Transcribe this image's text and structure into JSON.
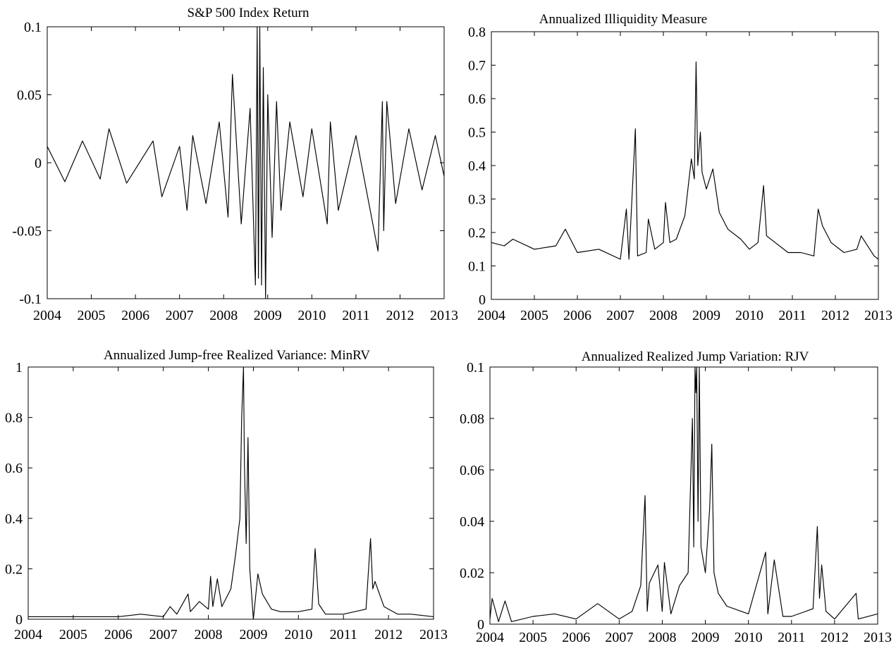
{
  "chart_data": [
    {
      "type": "line",
      "title": "S&P 500 Index Return",
      "xlim": [
        2004,
        2013
      ],
      "ylim": [
        -0.1,
        0.1
      ],
      "xticks": [
        2004,
        2005,
        2006,
        2007,
        2008,
        2009,
        2010,
        2011,
        2012,
        2013
      ],
      "xtick_labels": [
        "2004",
        "2005",
        "2006",
        "2007",
        "2008",
        "2009",
        "2010",
        "2011",
        "2012",
        "2013"
      ],
      "yticks": [
        -0.1,
        -0.05,
        0,
        0.05,
        0.1
      ],
      "ytick_labels": [
        "-0.1",
        "-0.05",
        "0",
        "0.05",
        "0.1"
      ],
      "grid": false,
      "series": [
        {
          "x": [
            2004.0,
            2004.4,
            2004.8,
            2005.2,
            2005.4,
            2005.8,
            2006.4,
            2006.6,
            2007.0,
            2007.17,
            2007.3,
            2007.6,
            2007.9,
            2008.1,
            2008.2,
            2008.4,
            2008.6,
            2008.72,
            2008.76,
            2008.79,
            2008.82,
            2008.86,
            2008.9,
            2008.95,
            2009.0,
            2009.1,
            2009.2,
            2009.3,
            2009.5,
            2009.8,
            2010.0,
            2010.35,
            2010.42,
            2010.6,
            2011.0,
            2011.5,
            2011.6,
            2011.63,
            2011.7,
            2011.9,
            2012.2,
            2012.5,
            2012.8,
            2013.0
          ],
          "y": [
            0.012,
            -0.014,
            0.016,
            -0.012,
            0.025,
            -0.015,
            0.016,
            -0.025,
            0.012,
            -0.035,
            0.02,
            -0.03,
            0.03,
            -0.04,
            0.065,
            -0.045,
            0.04,
            -0.09,
            0.1,
            -0.085,
            0.1,
            -0.09,
            0.07,
            -0.1,
            0.05,
            -0.055,
            0.045,
            -0.035,
            0.03,
            -0.025,
            0.025,
            -0.045,
            0.03,
            -0.035,
            0.02,
            -0.065,
            0.045,
            -0.05,
            0.045,
            -0.03,
            0.025,
            -0.02,
            0.02,
            -0.01
          ]
        }
      ]
    },
    {
      "type": "line",
      "title": "Annualized Illiquidity Measure",
      "xlim": [
        2004,
        2013
      ],
      "ylim": [
        0,
        0.8
      ],
      "xticks": [
        2004,
        2005,
        2006,
        2007,
        2008,
        2009,
        2010,
        2011,
        2012,
        2013
      ],
      "xtick_labels": [
        "2004",
        "2005",
        "2006",
        "2007",
        "2008",
        "2009",
        "2010",
        "2011",
        "2012",
        "2013"
      ],
      "yticks": [
        0,
        0.1,
        0.2,
        0.3,
        0.4,
        0.5,
        0.6,
        0.7,
        0.8
      ],
      "ytick_labels": [
        "0",
        "0.1",
        "0.2",
        "0.3",
        "0.4",
        "0.5",
        "0.6",
        "0.7",
        "0.8"
      ],
      "grid": false,
      "series": [
        {
          "x": [
            2004.0,
            2004.3,
            2004.5,
            2005.0,
            2005.5,
            2005.72,
            2006.0,
            2006.5,
            2007.0,
            2007.14,
            2007.2,
            2007.35,
            2007.4,
            2007.6,
            2007.65,
            2007.8,
            2008.0,
            2008.05,
            2008.15,
            2008.3,
            2008.5,
            2008.65,
            2008.72,
            2008.76,
            2008.8,
            2008.86,
            2008.9,
            2009.0,
            2009.15,
            2009.3,
            2009.5,
            2009.8,
            2010.0,
            2010.2,
            2010.33,
            2010.4,
            2010.6,
            2010.9,
            2011.2,
            2011.5,
            2011.6,
            2011.7,
            2011.9,
            2012.2,
            2012.5,
            2012.6,
            2012.9,
            2013.0
          ],
          "y": [
            0.17,
            0.16,
            0.18,
            0.15,
            0.16,
            0.21,
            0.14,
            0.15,
            0.12,
            0.27,
            0.12,
            0.51,
            0.13,
            0.14,
            0.24,
            0.15,
            0.17,
            0.29,
            0.17,
            0.18,
            0.25,
            0.42,
            0.36,
            0.71,
            0.4,
            0.5,
            0.38,
            0.33,
            0.39,
            0.26,
            0.21,
            0.18,
            0.15,
            0.17,
            0.34,
            0.19,
            0.17,
            0.14,
            0.14,
            0.13,
            0.27,
            0.22,
            0.17,
            0.14,
            0.15,
            0.19,
            0.13,
            0.12
          ]
        }
      ]
    },
    {
      "type": "line",
      "title": "Annualized Jump-free Realized Variance: MinRV",
      "xlim": [
        2004,
        2013
      ],
      "ylim": [
        0,
        1
      ],
      "xticks": [
        2004,
        2005,
        2006,
        2007,
        2008,
        2009,
        2010,
        2011,
        2012,
        2013
      ],
      "xtick_labels": [
        "2004",
        "2005",
        "2006",
        "2007",
        "2008",
        "2009",
        "2010",
        "2011",
        "2012",
        "2013"
      ],
      "yticks": [
        0,
        0.2,
        0.4,
        0.6,
        0.8,
        1
      ],
      "ytick_labels": [
        "0",
        "0.2",
        "0.4",
        "0.6",
        "0.8",
        "1"
      ],
      "grid": false,
      "series": [
        {
          "x": [
            2004.0,
            2005.0,
            2006.0,
            2006.5,
            2007.0,
            2007.15,
            2007.3,
            2007.55,
            2007.6,
            2007.8,
            2008.0,
            2008.05,
            2008.1,
            2008.2,
            2008.3,
            2008.5,
            2008.6,
            2008.7,
            2008.74,
            2008.78,
            2008.8,
            2008.84,
            2008.88,
            2008.92,
            2008.96,
            2009.0,
            2009.1,
            2009.2,
            2009.4,
            2009.6,
            2010.0,
            2010.3,
            2010.37,
            2010.45,
            2010.6,
            2011.0,
            2011.5,
            2011.6,
            2011.65,
            2011.7,
            2011.9,
            2012.2,
            2012.5,
            2013.0
          ],
          "y": [
            0.01,
            0.01,
            0.01,
            0.02,
            0.01,
            0.05,
            0.02,
            0.1,
            0.03,
            0.07,
            0.04,
            0.17,
            0.05,
            0.16,
            0.05,
            0.12,
            0.25,
            0.4,
            0.8,
            1.0,
            0.62,
            0.3,
            0.72,
            0.2,
            0.1,
            0.0,
            0.18,
            0.1,
            0.04,
            0.03,
            0.03,
            0.04,
            0.28,
            0.06,
            0.02,
            0.02,
            0.04,
            0.32,
            0.12,
            0.15,
            0.05,
            0.02,
            0.02,
            0.01
          ]
        }
      ]
    },
    {
      "type": "line",
      "title": "Annualized Realized Jump Variation: RJV",
      "xlim": [
        2004,
        2013
      ],
      "ylim": [
        0,
        0.1
      ],
      "xticks": [
        2004,
        2005,
        2006,
        2007,
        2008,
        2009,
        2010,
        2011,
        2012,
        2013
      ],
      "xtick_labels": [
        "2004",
        "2005",
        "2006",
        "2007",
        "2008",
        "2009",
        "2010",
        "2011",
        "2012",
        "2013"
      ],
      "yticks": [
        0,
        0.02,
        0.04,
        0.06,
        0.08,
        0.1
      ],
      "ytick_labels": [
        "0",
        "0.02",
        "0.04",
        "0.06",
        "0.08",
        "0.1"
      ],
      "grid": false,
      "series": [
        {
          "x": [
            2004.0,
            2004.05,
            2004.2,
            2004.35,
            2004.5,
            2005.0,
            2005.5,
            2006.0,
            2006.5,
            2007.0,
            2007.3,
            2007.5,
            2007.6,
            2007.65,
            2007.7,
            2007.9,
            2008.0,
            2008.05,
            2008.2,
            2008.4,
            2008.6,
            2008.7,
            2008.73,
            2008.76,
            2008.78,
            2008.8,
            2008.83,
            2008.86,
            2008.9,
            2009.0,
            2009.1,
            2009.15,
            2009.2,
            2009.3,
            2009.5,
            2010.0,
            2010.4,
            2010.45,
            2010.6,
            2010.8,
            2011.0,
            2011.5,
            2011.6,
            2011.65,
            2011.7,
            2011.8,
            2012.0,
            2012.5,
            2012.55,
            2013.0
          ],
          "y": [
            0.002,
            0.01,
            0.001,
            0.009,
            0.001,
            0.003,
            0.004,
            0.002,
            0.008,
            0.002,
            0.005,
            0.015,
            0.05,
            0.005,
            0.016,
            0.023,
            0.005,
            0.024,
            0.004,
            0.015,
            0.02,
            0.08,
            0.03,
            0.1,
            0.09,
            0.1,
            0.04,
            0.1,
            0.03,
            0.02,
            0.045,
            0.07,
            0.02,
            0.012,
            0.007,
            0.004,
            0.028,
            0.004,
            0.025,
            0.003,
            0.003,
            0.006,
            0.038,
            0.01,
            0.023,
            0.005,
            0.002,
            0.012,
            0.002,
            0.004
          ]
        }
      ]
    }
  ]
}
